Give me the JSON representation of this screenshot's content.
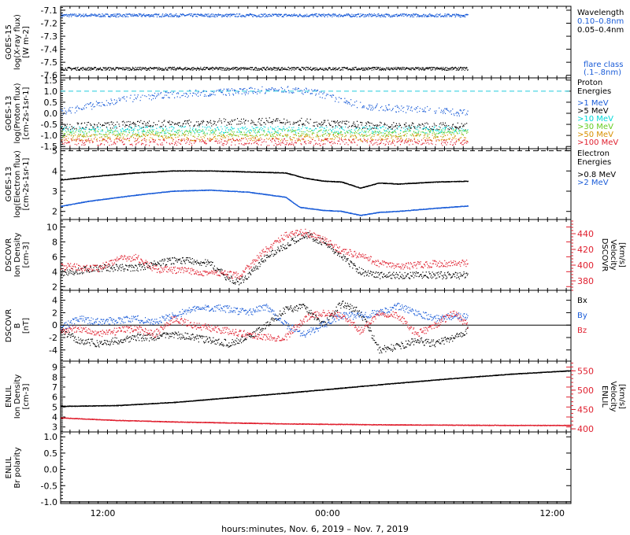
{
  "chart_data": [
    {
      "type": "scatter",
      "panel": "goes15-xray",
      "ylabel": [
        "GOES-15",
        "log(X-ray flux)",
        "[W m-2]"
      ],
      "ylim": [
        -7.62,
        -7.07
      ],
      "yticks": [
        "-7.1",
        "-7.2",
        "-7.3",
        "-7.4",
        "-7.5",
        "-7.6"
      ],
      "legend_title": "Wavelength",
      "series": [
        {
          "name": "0.10–0.8nm",
          "color": "#1a5cd8",
          "level": -7.14,
          "noise": 0.012
        },
        {
          "name": "0.05–0.4nm",
          "color": "#000000",
          "level": -7.55,
          "noise": 0.012
        }
      ],
      "annotation": [
        "flare class",
        "(.1–.8nm)"
      ]
    },
    {
      "type": "scatter",
      "panel": "goes13-proton",
      "ylabel": [
        "GOES-13",
        "log(Proton flux)",
        "[cm-2s-1sr-1]"
      ],
      "ylim": [
        -1.6,
        1.6
      ],
      "yticks": [
        "1.5",
        "1.0",
        "0.5",
        "0.0",
        "-0.5",
        "-1.0",
        "-1.5"
      ],
      "threshold": 1.0,
      "legend_title": [
        "Proton",
        "Energies"
      ],
      "series": [
        {
          "name": ">1 MeV",
          "color": "#1a5cd8",
          "x": [
            0,
            4,
            8,
            12,
            16,
            20,
            24,
            27,
            30,
            33,
            36,
            39,
            42,
            44.5
          ],
          "y": [
            0.05,
            0.4,
            0.7,
            0.85,
            0.93,
            1.0,
            1.1,
            0.95,
            0.55,
            0.3,
            0.2,
            0.15,
            0.05,
            0.0
          ]
        },
        {
          "name": ">5 MeV",
          "color": "#000000",
          "x": [
            0,
            12,
            24,
            33,
            44.5
          ],
          "y": [
            -0.6,
            -0.45,
            -0.35,
            -0.55,
            -0.6
          ]
        },
        {
          "name": ">10 MeV",
          "color": "#00d8d8",
          "x": [
            0,
            44.5
          ],
          "y": [
            -0.75,
            -0.75
          ]
        },
        {
          "name": ">30 MeV",
          "color": "#66cc22",
          "x": [
            0,
            44.5
          ],
          "y": [
            -0.9,
            -0.9
          ]
        },
        {
          "name": ">50 MeV",
          "color": "#d89000",
          "x": [
            0,
            44.5
          ],
          "y": [
            -1.1,
            -1.1
          ]
        },
        {
          "name": ">100 MeV",
          "color": "#e0202f",
          "x": [
            0,
            44.5
          ],
          "y": [
            -1.3,
            -1.3
          ]
        }
      ]
    },
    {
      "type": "line",
      "panel": "goes13-electron",
      "ylabel": [
        "GOES-13",
        "log(Electron flux)",
        "[cm-2s-1sr-1]"
      ],
      "ylim": [
        1.6,
        5.1
      ],
      "yticks": [
        "5",
        "4",
        "3",
        "2"
      ],
      "threshold": 5,
      "legend_title": [
        "Electron",
        "Energies"
      ],
      "series": [
        {
          "name": ">0.8 MeV",
          "color": "#000000",
          "x": [
            0,
            3,
            8,
            12,
            16,
            20,
            24,
            26,
            28,
            30,
            32,
            34,
            36,
            40,
            44.5
          ],
          "y": [
            3.55,
            3.7,
            3.9,
            4.0,
            4.0,
            3.95,
            3.9,
            3.65,
            3.5,
            3.45,
            3.15,
            3.4,
            3.35,
            3.45,
            3.5
          ]
        },
        {
          "name": ">2 MeV",
          "color": "#1a5cd8",
          "x": [
            0,
            3,
            8,
            12,
            16,
            20,
            24,
            25.5,
            28,
            30,
            32,
            34,
            36,
            40,
            44.5
          ],
          "y": [
            2.25,
            2.5,
            2.8,
            3.0,
            3.05,
            2.95,
            2.7,
            2.2,
            2.05,
            2.0,
            1.8,
            1.95,
            2.0,
            2.15,
            2.3
          ]
        }
      ]
    },
    {
      "type": "scatter",
      "panel": "dscovr-plasma",
      "ylabel": [
        "DSCOVR",
        "Ion Density",
        "[cm-3]"
      ],
      "ylim": [
        1.5,
        11
      ],
      "yticks": [
        "10",
        "8",
        "6",
        "4",
        "2"
      ],
      "y2label": [
        "DSCOVR",
        "Velocity",
        "[km/s]"
      ],
      "y2lim": [
        368,
        458
      ],
      "y2ticks": [
        "440",
        "420",
        "400",
        "380"
      ],
      "series": [
        {
          "name": "Density",
          "color": "#000000",
          "axis": "left",
          "x": [
            0,
            4,
            8,
            12,
            14,
            16,
            18,
            19,
            20,
            22,
            24,
            26,
            28,
            30,
            32,
            34,
            36,
            40,
            44.5
          ],
          "y": [
            3.8,
            4.5,
            4.5,
            5.5,
            5.5,
            5,
            3,
            2.6,
            3.5,
            6,
            7.5,
            9,
            8,
            6,
            4,
            3.5,
            3.5,
            3.5,
            3.5
          ]
        },
        {
          "name": "Velocity",
          "color": "#e0202f",
          "axis": "right",
          "x": [
            0,
            4,
            6,
            8,
            10,
            14,
            18,
            19,
            20,
            22,
            24,
            26,
            28,
            30,
            32,
            34,
            36,
            40,
            44.5
          ],
          "y": [
            398,
            396,
            407,
            410,
            395,
            392,
            388,
            386,
            398,
            420,
            438,
            442,
            432,
            418,
            412,
            402,
            398,
            402,
            402
          ]
        }
      ]
    },
    {
      "type": "scatter",
      "panel": "dscovr-mag",
      "ylabel": [
        "DSCOVR",
        "B",
        "[nT]"
      ],
      "ylim": [
        -5.8,
        5.6
      ],
      "yticks": [
        "4",
        "2",
        "0",
        "-2",
        "-4"
      ],
      "zero_line": 0,
      "series": [
        {
          "name": "Bx",
          "color": "#000000",
          "x": [
            0,
            2,
            4,
            6,
            8,
            10,
            12,
            14,
            16,
            18,
            20,
            22,
            24,
            26,
            28,
            30,
            32,
            34,
            36,
            38,
            40,
            42,
            44.5
          ],
          "y": [
            -1,
            -2.5,
            -3,
            -2.5,
            -2,
            -2,
            -1.5,
            -2,
            -2.5,
            -3,
            -2,
            0,
            2.5,
            3,
            0,
            3.5,
            2,
            -4,
            -3.5,
            -2.5,
            -3,
            -2,
            0
          ]
        },
        {
          "name": "By",
          "color": "#1a5cd8",
          "x": [
            0,
            2,
            4,
            6,
            8,
            10,
            12,
            14,
            16,
            18,
            20,
            22,
            24,
            26,
            28,
            30,
            32,
            34,
            36,
            38,
            40,
            42,
            44.5
          ],
          "y": [
            -0.5,
            1,
            0.5,
            0.8,
            1,
            0.5,
            1.5,
            2.5,
            2.8,
            2.5,
            2,
            3,
            0,
            -1.5,
            0,
            1.5,
            1.5,
            2,
            3,
            2,
            1,
            1.5,
            1
          ]
        },
        {
          "name": "Bz",
          "color": "#e0202f",
          "x": [
            0,
            2,
            4,
            6,
            8,
            10,
            12,
            14,
            16,
            18,
            20,
            22,
            24,
            26,
            28,
            30,
            32,
            34,
            36,
            38,
            40,
            42,
            44.5
          ],
          "y": [
            -1,
            -0.5,
            -1.5,
            -1,
            -0.5,
            -1.5,
            1,
            0,
            -0.5,
            -1,
            -1.5,
            -2,
            -2,
            1,
            2,
            1.5,
            -1,
            2,
            1.5,
            -1.5,
            0,
            2,
            -1.5
          ]
        }
      ]
    },
    {
      "type": "line",
      "panel": "enlil-plasma",
      "ylabel": [
        "ENLIL",
        "Ion Density",
        "[cm-3]"
      ],
      "ylim": [
        2.5,
        9.6
      ],
      "yticks": [
        "9",
        "8",
        "7",
        "6",
        "5",
        "4",
        "3"
      ],
      "y2label": [
        "ENLIL",
        "Velocity",
        "[km/s]"
      ],
      "y2lim": [
        392,
        575
      ],
      "y2ticks": [
        "550",
        "500",
        "450",
        "400"
      ],
      "series": [
        {
          "name": "Velocity",
          "color": "#000000",
          "axis": "right",
          "x": [
            0,
            6,
            12,
            18,
            24,
            30,
            36,
            42,
            48,
            54.5
          ],
          "y": [
            458,
            460,
            468,
            480,
            492,
            505,
            518,
            530,
            541,
            550
          ]
        },
        {
          "name": "Density",
          "color": "#e0202f",
          "axis": "left",
          "x": [
            0,
            6,
            12,
            18,
            24,
            30,
            36,
            42,
            48,
            54.5
          ],
          "y": [
            3.9,
            3.65,
            3.5,
            3.4,
            3.3,
            3.25,
            3.2,
            3.18,
            3.15,
            3.15
          ]
        }
      ]
    },
    {
      "type": "line",
      "panel": "enlil-polarity",
      "ylabel": [
        "ENLIL",
        "Br polarity"
      ],
      "ylim": [
        -1.05,
        1.15
      ],
      "yticks": [
        "1.0",
        "0.5",
        "0.0",
        "-0.5",
        "-1.0"
      ],
      "series": [
        {
          "name": "Polarity",
          "color": "#000000",
          "x": [
            0,
            54.5
          ],
          "y": [
            -1.0,
            -1.0
          ]
        }
      ]
    }
  ],
  "time_axis": {
    "range_hours": [
      0,
      54.5
    ],
    "ticks": [
      {
        "h": 4.5,
        "label": "12:00"
      },
      {
        "h": 28.5,
        "label": "00:00"
      },
      {
        "h": 52.5,
        "label": "12:00"
      }
    ],
    "label": "hours:minutes, Nov.  6, 2019 – Nov.  7, 2019"
  },
  "legends": {
    "xray_title": "Wavelength",
    "xray_items": [
      {
        "text": "0.10–0.8nm",
        "color": "#1a5cd8"
      },
      {
        "text": "0.05–0.4nm",
        "color": "#000000"
      }
    ],
    "flare_class": [
      "flare class",
      "(.1–.8nm)"
    ],
    "proton_title": [
      "Proton",
      "Energies"
    ],
    "proton_items": [
      {
        "text": ">1 MeV",
        "color": "#1a5cd8"
      },
      {
        "text": ">5 MeV",
        "color": "#000000"
      },
      {
        "text": ">10 MeV",
        "color": "#00d8d8"
      },
      {
        "text": ">30 MeV",
        "color": "#66cc22"
      },
      {
        "text": ">50 MeV",
        "color": "#d89000"
      },
      {
        "text": ">100 MeV",
        "color": "#e0202f"
      }
    ],
    "electron_title": [
      "Electron",
      "Energies"
    ],
    "electron_items": [
      {
        "text": ">0.8 MeV",
        "color": "#000000"
      },
      {
        "text": ">2 MeV",
        "color": "#1a5cd8"
      }
    ],
    "mag_items": [
      {
        "text": "Bx",
        "color": "#000000"
      },
      {
        "text": "By",
        "color": "#1a5cd8"
      },
      {
        "text": "Bz",
        "color": "#e0202f"
      }
    ]
  }
}
